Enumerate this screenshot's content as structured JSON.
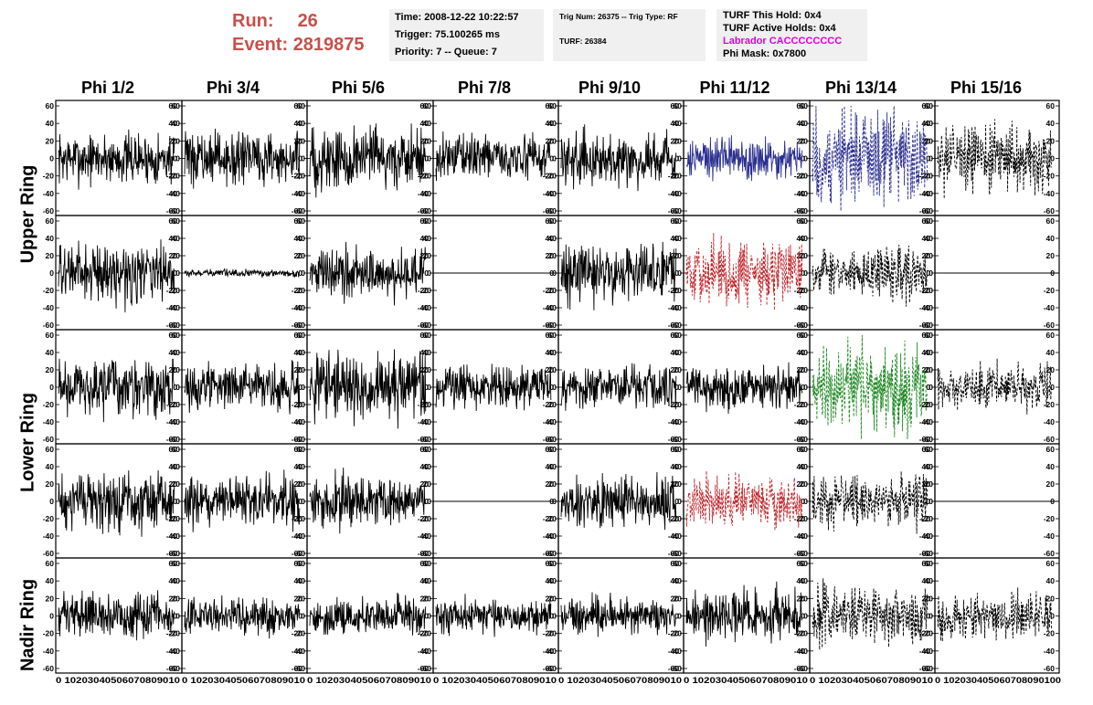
{
  "header": {
    "run_label": "Run:",
    "run_value": "26",
    "event_label": "Event:",
    "event_value": "2819875",
    "time": "Time: 2008-12-22 10:22:57",
    "trigger": "Trigger: 75.100265 ms",
    "priority": "Priority: 7 -- Queue: 7",
    "trig_num": "Trig Num: 26375 -- Trig Type: RF",
    "turf": "TURF: 26384",
    "turf_hold": "TURF This Hold: 0x4",
    "turf_active": "TURF Active Holds: 0x4",
    "labrador": "Labrador CACCCCCCCC",
    "phi_mask": "Phi Mask: 0x7800"
  },
  "colors": {
    "red_text": "#c8504b",
    "blue": "#2b2f8f",
    "red": "#c0282d",
    "green": "#1e8a22",
    "magenta": "#e000e0"
  },
  "chart_data": {
    "type": "line",
    "columns": [
      "Phi 1/2",
      "Phi 3/4",
      "Phi 5/6",
      "Phi 7/8",
      "Phi 9/10",
      "Phi 11/12",
      "Phi 13/14",
      "Phi 15/16"
    ],
    "rows": [
      {
        "name": "Upper Ring",
        "panels": 2
      },
      {
        "name": "Lower Ring",
        "panels": 2
      },
      {
        "name": "Nadir Ring",
        "panels": 1
      }
    ],
    "ylim": [
      -60,
      60
    ],
    "yticks": [
      60,
      40,
      20,
      0,
      -20,
      -40,
      -60
    ],
    "xlim": [
      0,
      100
    ],
    "xticks": [
      0,
      10,
      20,
      30,
      40,
      50,
      60,
      70,
      80,
      90,
      100
    ],
    "x_axis_text": "0 10203040506070809010",
    "x_axis_text_last": "0 102030405060708090100",
    "panels": [
      {
        "row": 0,
        "col": 0,
        "color": "#000000",
        "style": "solid",
        "amp": 14
      },
      {
        "row": 0,
        "col": 1,
        "color": "#000000",
        "style": "solid",
        "amp": 14
      },
      {
        "row": 0,
        "col": 2,
        "color": "#000000",
        "style": "solid",
        "amp": 18
      },
      {
        "row": 0,
        "col": 3,
        "color": "#000000",
        "style": "solid",
        "amp": 12
      },
      {
        "row": 0,
        "col": 4,
        "color": "#000000",
        "style": "solid",
        "amp": 14
      },
      {
        "row": 0,
        "col": 5,
        "color": "#2b2f8f",
        "style": "solid",
        "amp": 12
      },
      {
        "row": 0,
        "col": 6,
        "color": "#2b2f8f",
        "style": "dashed",
        "amp": 28
      },
      {
        "row": 0,
        "col": 7,
        "color": "#000000",
        "style": "dashed",
        "amp": 18
      },
      {
        "row": 1,
        "col": 0,
        "color": "#000000",
        "style": "solid",
        "amp": 16
      },
      {
        "row": 1,
        "col": 1,
        "color": "#000000",
        "style": "solid",
        "amp": 2
      },
      {
        "row": 1,
        "col": 2,
        "color": "#000000",
        "style": "solid",
        "amp": 14
      },
      {
        "row": 1,
        "col": 3,
        "color": "#000000",
        "style": "flat",
        "amp": 0
      },
      {
        "row": 1,
        "col": 4,
        "color": "#000000",
        "style": "solid",
        "amp": 16
      },
      {
        "row": 1,
        "col": 5,
        "color": "#c0282d",
        "style": "dashed",
        "amp": 18
      },
      {
        "row": 1,
        "col": 6,
        "color": "#000000",
        "style": "dashed",
        "amp": 14
      },
      {
        "row": 1,
        "col": 7,
        "color": "#000000",
        "style": "flat",
        "amp": 0
      },
      {
        "row": 2,
        "col": 0,
        "color": "#000000",
        "style": "solid",
        "amp": 16
      },
      {
        "row": 2,
        "col": 1,
        "color": "#000000",
        "style": "solid",
        "amp": 12
      },
      {
        "row": 2,
        "col": 2,
        "color": "#000000",
        "style": "solid",
        "amp": 18
      },
      {
        "row": 2,
        "col": 3,
        "color": "#000000",
        "style": "solid",
        "amp": 12
      },
      {
        "row": 2,
        "col": 4,
        "color": "#000000",
        "style": "solid",
        "amp": 12
      },
      {
        "row": 2,
        "col": 5,
        "color": "#000000",
        "style": "solid",
        "amp": 12
      },
      {
        "row": 2,
        "col": 6,
        "color": "#1e8a22",
        "style": "dashed",
        "amp": 24
      },
      {
        "row": 2,
        "col": 7,
        "color": "#000000",
        "style": "dashed",
        "amp": 12
      },
      {
        "row": 3,
        "col": 0,
        "color": "#000000",
        "style": "solid",
        "amp": 16
      },
      {
        "row": 3,
        "col": 1,
        "color": "#000000",
        "style": "solid",
        "amp": 14
      },
      {
        "row": 3,
        "col": 2,
        "color": "#000000",
        "style": "solid",
        "amp": 14
      },
      {
        "row": 3,
        "col": 3,
        "color": "#000000",
        "style": "flat",
        "amp": 0
      },
      {
        "row": 3,
        "col": 4,
        "color": "#000000",
        "style": "solid",
        "amp": 14
      },
      {
        "row": 3,
        "col": 5,
        "color": "#c0282d",
        "style": "dashed",
        "amp": 14
      },
      {
        "row": 3,
        "col": 6,
        "color": "#000000",
        "style": "dashed",
        "amp": 14
      },
      {
        "row": 3,
        "col": 7,
        "color": "#000000",
        "style": "flat",
        "amp": 0
      },
      {
        "row": 4,
        "col": 0,
        "color": "#000000",
        "style": "solid",
        "amp": 12
      },
      {
        "row": 4,
        "col": 1,
        "color": "#000000",
        "style": "solid",
        "amp": 10
      },
      {
        "row": 4,
        "col": 2,
        "color": "#000000",
        "style": "solid",
        "amp": 10
      },
      {
        "row": 4,
        "col": 3,
        "color": "#000000",
        "style": "solid",
        "amp": 10
      },
      {
        "row": 4,
        "col": 4,
        "color": "#000000",
        "style": "solid",
        "amp": 10
      },
      {
        "row": 4,
        "col": 5,
        "color": "#000000",
        "style": "solid",
        "amp": 14
      },
      {
        "row": 4,
        "col": 6,
        "color": "#000000",
        "style": "dashed",
        "amp": 16
      },
      {
        "row": 4,
        "col": 7,
        "color": "#000000",
        "style": "dashed",
        "amp": 12
      }
    ]
  }
}
